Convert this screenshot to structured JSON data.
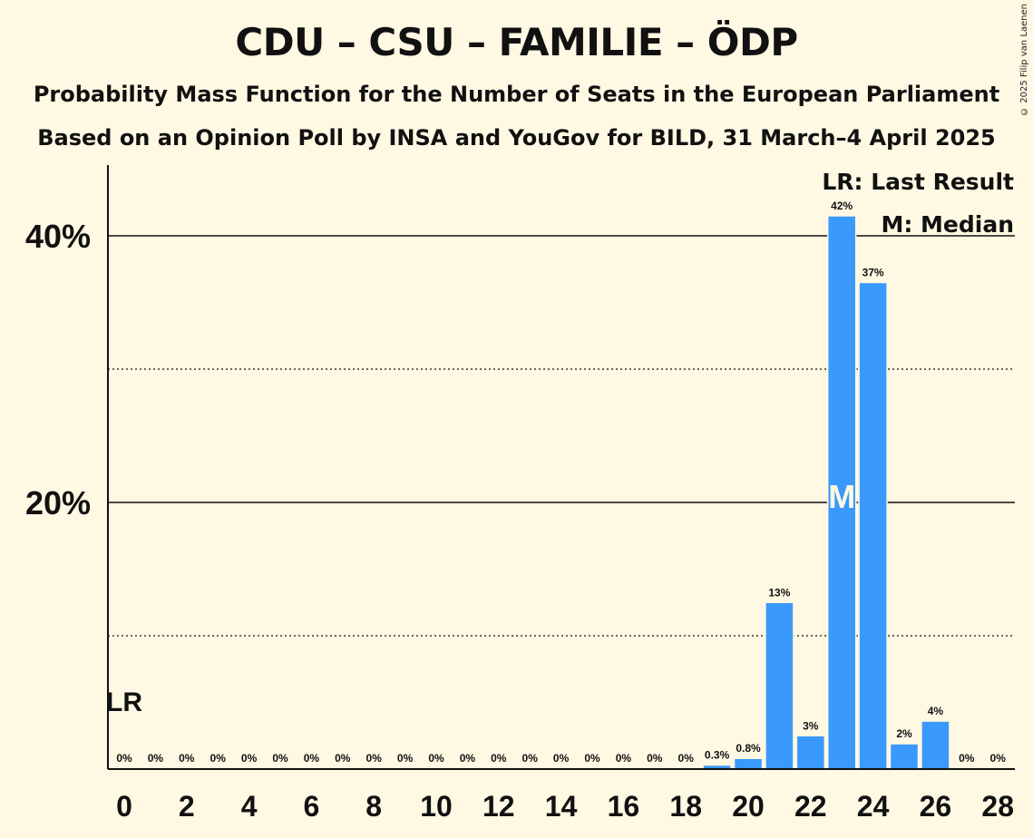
{
  "title": "CDU – CSU – FAMILIE – ÖDP",
  "subtitle_1": "Probability Mass Function for the Number of Seats in the European Parliament",
  "subtitle_2": "Based on an Opinion Poll by INSA and YouGov for BILD, 31 March–4 April 2025",
  "copyright": "© 2025 Filip van Laenen",
  "legend": {
    "last_result": "LR: Last Result",
    "median": "M: Median"
  },
  "chart_data": {
    "type": "bar",
    "x": [
      0,
      1,
      2,
      3,
      4,
      5,
      6,
      7,
      8,
      9,
      10,
      11,
      12,
      13,
      14,
      15,
      16,
      17,
      18,
      19,
      20,
      21,
      22,
      23,
      24,
      25,
      26,
      27,
      28
    ],
    "values": [
      0,
      0,
      0,
      0,
      0,
      0,
      0,
      0,
      0,
      0,
      0,
      0,
      0,
      0,
      0,
      0,
      0,
      0,
      0,
      0.3,
      0.8,
      12.5,
      2.5,
      41.5,
      36.5,
      1.9,
      3.6,
      0,
      0
    ],
    "data_labels": [
      "0%",
      "0%",
      "0%",
      "0%",
      "0%",
      "0%",
      "0%",
      "0%",
      "0%",
      "0%",
      "0%",
      "0%",
      "0%",
      "0%",
      "0%",
      "0%",
      "0%",
      "0%",
      "0%",
      "0.3%",
      "0.8%",
      "13%",
      "3%",
      "42%",
      "37%",
      "2%",
      "4%",
      "0%",
      "0%"
    ],
    "x_tick_labels": [
      "0",
      "2",
      "4",
      "6",
      "8",
      "10",
      "12",
      "14",
      "16",
      "18",
      "20",
      "22",
      "24",
      "26",
      "28"
    ],
    "y_tick_labels": [
      "20%",
      "40%"
    ],
    "ylim": [
      0,
      45
    ],
    "last_result": {
      "seat": 0,
      "label": "LR"
    },
    "median": {
      "seat": 23,
      "label": "M"
    },
    "bar_color": "#3a99fc",
    "grid": "solid at 20% steps, dotted at 10% steps"
  }
}
